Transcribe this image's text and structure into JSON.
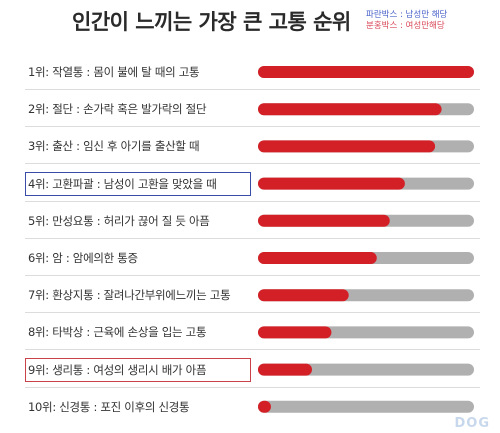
{
  "header": {
    "title": "인간이 느끼는 가장 큰 고통 순위",
    "legend": [
      {
        "label": "파란박스 : 남성만 해당",
        "color": "#4a63c9"
      },
      {
        "label": "분홍박스 : 여성만해당",
        "color": "#d94a5a"
      }
    ]
  },
  "colors": {
    "bar_fill": "#d32027",
    "bar_track": "#b0b0b0",
    "male_box": "#3b4ca8",
    "female_box": "#c9424a"
  },
  "chart_data": {
    "type": "bar",
    "orientation": "horizontal",
    "categories": [
      "1위: 작열통 : 몸이 불에 탈 때의 고통",
      "2위: 절단 : 손가락 혹은 발가락의 절단",
      "3위: 출산 : 임신 후 아기를 출산할 때",
      "4위: 고환파괄 : 남성이 고환을 맞았을 때",
      "5위: 만성요통 : 허리가 끊어 질 듯 아픔",
      "6위: 암 : 암에의한 통증",
      "7위: 환상지통 : 잘려나간부위에느끼는 고통",
      "8위: 타박상 : 근육에 손상을 입는 고통",
      "9위: 생리통 : 여성의 생리시 배가 아픔",
      "10위: 신경통 : 포진 이후의 신경통"
    ],
    "values": [
      100,
      85,
      82,
      68,
      61,
      55,
      42,
      34,
      25,
      6
    ],
    "highlight": [
      "",
      "",
      "",
      "male",
      "",
      "",
      "",
      "",
      "female",
      ""
    ],
    "xlim": [
      0,
      100
    ],
    "title": "인간이 느끼는 가장 큰 고통 순위",
    "xlabel": "",
    "ylabel": "",
    "grid": false,
    "legend_position": "top-right"
  },
  "watermark": "DOG"
}
